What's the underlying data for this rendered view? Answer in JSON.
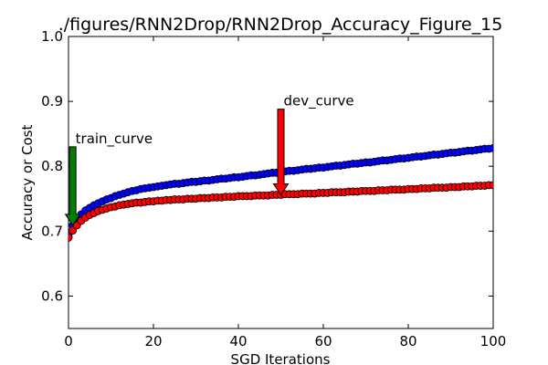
{
  "chart_data": {
    "type": "scatter",
    "title": "./figures/RNN2Drop/RNN2Drop_Accuracy_Figure_15",
    "xlabel": "SGD Iterations",
    "ylabel": "Accuracy or Cost",
    "xlim": [
      0,
      100
    ],
    "ylim": [
      0.55,
      1.0
    ],
    "xticks": [
      0,
      20,
      40,
      60,
      80,
      100
    ],
    "xtick_labels": [
      "0",
      "20",
      "40",
      "60",
      "80",
      "100"
    ],
    "yticks": [
      0.6,
      0.7,
      0.8,
      0.9,
      1.0
    ],
    "ytick_labels": [
      "0.6",
      "0.7",
      "0.8",
      "0.9",
      "1.0"
    ],
    "grid": false,
    "legend": "none",
    "series": [
      {
        "name": "train_curve",
        "color": "#0000ff",
        "values": [
          0.693,
          0.709,
          0.718,
          0.726,
          0.732,
          0.736,
          0.74,
          0.743,
          0.746,
          0.749,
          0.751,
          0.754,
          0.756,
          0.758,
          0.76,
          0.762,
          0.763,
          0.765,
          0.766,
          0.767,
          0.768,
          0.769,
          0.77,
          0.771,
          0.772,
          0.773,
          0.773,
          0.774,
          0.775,
          0.776,
          0.776,
          0.777,
          0.778,
          0.778,
          0.779,
          0.78,
          0.781,
          0.781,
          0.782,
          0.783,
          0.783,
          0.784,
          0.785,
          0.786,
          0.786,
          0.787,
          0.788,
          0.789,
          0.79,
          0.79,
          0.791,
          0.792,
          0.793,
          0.793,
          0.794,
          0.795,
          0.796,
          0.796,
          0.797,
          0.798,
          0.798,
          0.799,
          0.8,
          0.801,
          0.801,
          0.802,
          0.803,
          0.804,
          0.804,
          0.805,
          0.806,
          0.806,
          0.807,
          0.808,
          0.809,
          0.809,
          0.81,
          0.811,
          0.812,
          0.812,
          0.813,
          0.814,
          0.815,
          0.815,
          0.816,
          0.817,
          0.818,
          0.818,
          0.819,
          0.82,
          0.821,
          0.821,
          0.822,
          0.823,
          0.824,
          0.824,
          0.825,
          0.826,
          0.827,
          0.827,
          0.828
        ]
      },
      {
        "name": "dev_curve",
        "color": "#ff0000",
        "values": [
          0.69,
          0.701,
          0.709,
          0.716,
          0.721,
          0.725,
          0.728,
          0.731,
          0.733,
          0.735,
          0.737,
          0.738,
          0.74,
          0.741,
          0.742,
          0.743,
          0.744,
          0.744,
          0.745,
          0.746,
          0.746,
          0.747,
          0.747,
          0.748,
          0.748,
          0.749,
          0.749,
          0.749,
          0.75,
          0.75,
          0.75,
          0.751,
          0.751,
          0.751,
          0.752,
          0.752,
          0.752,
          0.753,
          0.753,
          0.753,
          0.754,
          0.754,
          0.754,
          0.754,
          0.755,
          0.755,
          0.755,
          0.755,
          0.756,
          0.756,
          0.756,
          0.757,
          0.757,
          0.757,
          0.757,
          0.758,
          0.758,
          0.758,
          0.758,
          0.759,
          0.759,
          0.759,
          0.76,
          0.76,
          0.76,
          0.76,
          0.761,
          0.761,
          0.761,
          0.762,
          0.762,
          0.762,
          0.762,
          0.763,
          0.763,
          0.763,
          0.764,
          0.764,
          0.764,
          0.764,
          0.765,
          0.765,
          0.765,
          0.766,
          0.766,
          0.766,
          0.767,
          0.767,
          0.767,
          0.767,
          0.768,
          0.768,
          0.768,
          0.769,
          0.769,
          0.769,
          0.77,
          0.77,
          0.77,
          0.771,
          0.771
        ]
      }
    ],
    "annotations": [
      {
        "text": "train_curve",
        "x": 1,
        "y": 0.709,
        "arrow_from_y": 0.83,
        "arrow_color": "#008000"
      },
      {
        "text": "dev_curve",
        "x": 50,
        "y": 0.756,
        "arrow_from_y": 0.888,
        "arrow_color": "#ff0000"
      }
    ]
  }
}
